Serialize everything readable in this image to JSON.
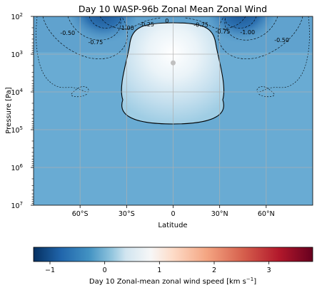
{
  "chart_data": {
    "type": "heatmap",
    "title": "Day 10 WASP-96b Zonal Mean Zonal Wind",
    "xlabel": "Latitude",
    "ylabel": "Pressure [Pa]",
    "xlim": [
      -90,
      90
    ],
    "ylim": [
      10000000,
      100
    ],
    "y_scale": "log",
    "grid": true,
    "x_ticks": [
      {
        "value": -60,
        "label": "60°S"
      },
      {
        "value": -30,
        "label": "30°S"
      },
      {
        "value": 0,
        "label": "0"
      },
      {
        "value": 30,
        "label": "30°N"
      },
      {
        "value": 60,
        "label": "60°N"
      }
    ],
    "y_ticks": [
      {
        "value": 100,
        "base": "10",
        "exp": "2"
      },
      {
        "value": 1000,
        "base": "10",
        "exp": "3"
      },
      {
        "value": 10000,
        "base": "10",
        "exp": "4"
      },
      {
        "value": 100000,
        "base": "10",
        "exp": "5"
      },
      {
        "value": 1000000,
        "base": "10",
        "exp": "6"
      },
      {
        "value": 10000000,
        "base": "10",
        "exp": "7"
      }
    ],
    "colorbar": {
      "label_prefix": "Day 10 Zonal-mean zonal wind speed [km s",
      "label_exp": "−1",
      "label_suffix": "]",
      "range": [
        -1.3,
        3.8
      ],
      "colormap": "RdBu_r",
      "ticks": [
        {
          "value": -1,
          "label": "−1"
        },
        {
          "value": 0,
          "label": "0"
        },
        {
          "value": 1,
          "label": "1"
        },
        {
          "value": 2,
          "label": "2"
        },
        {
          "value": 3,
          "label": "3"
        }
      ],
      "colors": {
        "min": "#053061",
        "mid": "#f7f7f7",
        "max": "#67001f"
      }
    },
    "contour_labels": [
      {
        "text": "-0.50",
        "lat": -68,
        "p": 270
      },
      {
        "text": "-0.75",
        "lat": -50,
        "p": 480
      },
      {
        "text": "-1.00",
        "lat": -30,
        "p": 200
      },
      {
        "text": "-0.25",
        "lat": -17,
        "p": 160
      },
      {
        "text": "0",
        "lat": -4,
        "p": 130
      },
      {
        "text": "-0.25",
        "lat": 18,
        "p": 165
      },
      {
        "text": "-0.75",
        "lat": 32,
        "p": 250
      },
      {
        "text": "-1.00",
        "lat": 48,
        "p": 260
      },
      {
        "text": "-0.50",
        "lat": 70,
        "p": 420
      }
    ],
    "jet_max_marker": {
      "lat": 0,
      "p": 1700,
      "color": "#c0c0c0"
    }
  }
}
